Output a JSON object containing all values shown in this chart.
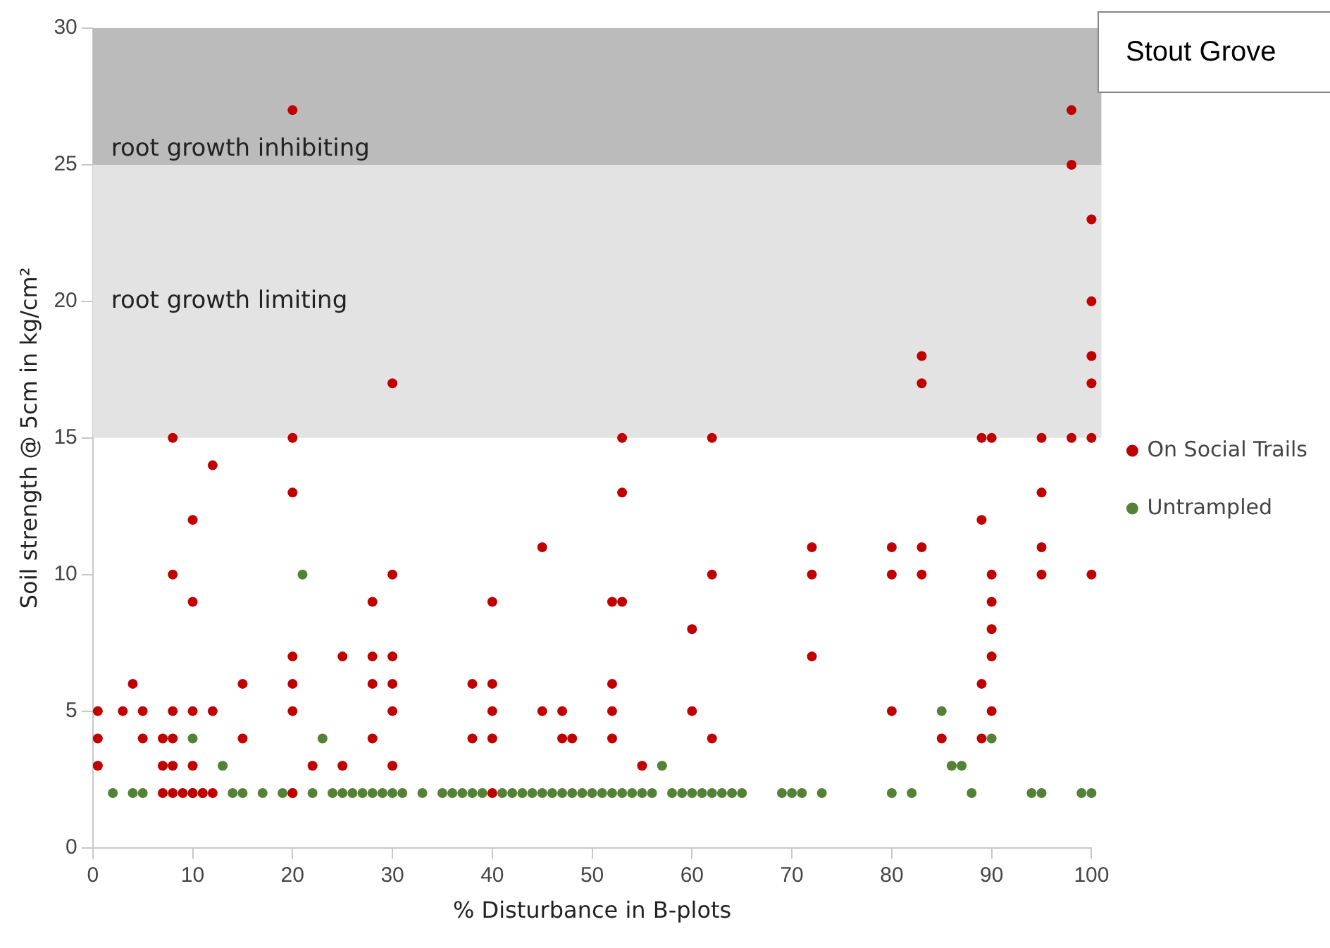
{
  "chart_data": {
    "type": "scatter",
    "title": "Stout Grove",
    "xlabel": "% Disturbance in B-plots",
    "ylabel": "Soil strength @ 5cm in kg/cm²",
    "xlim": [
      0,
      100
    ],
    "xticks": [
      0,
      10,
      20,
      30,
      40,
      50,
      60,
      70,
      80,
      90,
      100
    ],
    "ylim": [
      0,
      30
    ],
    "yticks": [
      0,
      5,
      10,
      15,
      20,
      25,
      30
    ],
    "grid": false,
    "legend": "right",
    "marker": "circle",
    "bands": [
      {
        "axis": "y",
        "from": 15,
        "to": 25,
        "label": "root growth limiting",
        "color": "#e3e3e3"
      },
      {
        "axis": "y",
        "from": 25,
        "to": 30,
        "label": "root growth inhibiting",
        "color": "#bbbbbb"
      }
    ],
    "series": [
      {
        "name": "On Social Trails",
        "color": "#c00000",
        "x": [
          0.5,
          0.5,
          0.5,
          3,
          4,
          5,
          5,
          7,
          7,
          7,
          8,
          8,
          8,
          8,
          8,
          8,
          9,
          10,
          10,
          10,
          10,
          10,
          11,
          12,
          12,
          12,
          15,
          15,
          20,
          20,
          20,
          20,
          20,
          20,
          20,
          22,
          25,
          25,
          28,
          28,
          28,
          28,
          30,
          30,
          30,
          30,
          30,
          30,
          38,
          38,
          40,
          40,
          40,
          40,
          40,
          45,
          45,
          47,
          47,
          48,
          52,
          52,
          52,
          52,
          53,
          53,
          53,
          55,
          60,
          60,
          62,
          62,
          62,
          72,
          72,
          72,
          80,
          80,
          80,
          83,
          83,
          83,
          83,
          85,
          89,
          89,
          89,
          89,
          90,
          90,
          90,
          90,
          90,
          90,
          95,
          95,
          95,
          95,
          98,
          98,
          98,
          100,
          100,
          100,
          100,
          100,
          100
        ],
        "values": [
          5,
          4,
          3,
          5,
          6,
          5,
          4,
          4,
          3,
          2,
          15,
          10,
          5,
          4,
          3,
          2,
          2,
          12,
          9,
          5,
          3,
          2,
          2,
          14,
          5,
          2,
          6,
          4,
          27,
          15,
          13,
          7,
          6,
          5,
          2,
          3,
          7,
          3,
          9,
          7,
          6,
          4,
          17,
          10,
          7,
          6,
          5,
          3,
          6,
          4,
          9,
          6,
          5,
          4,
          2,
          11,
          5,
          5,
          4,
          4,
          9,
          6,
          5,
          4,
          15,
          13,
          9,
          3,
          8,
          5,
          15,
          10,
          4,
          11,
          10,
          7,
          11,
          10,
          5,
          18,
          17,
          11,
          10,
          4,
          15,
          12,
          6,
          4,
          15,
          10,
          9,
          8,
          7,
          5,
          15,
          13,
          11,
          10,
          27,
          25,
          15,
          23,
          20,
          18,
          17,
          15,
          10
        ]
      },
      {
        "name": "Untrampled",
        "color": "#538135",
        "x": [
          2,
          4,
          5,
          10,
          10,
          11,
          13,
          14,
          15,
          17,
          19,
          20,
          21,
          22,
          23,
          24,
          25,
          26,
          27,
          28,
          29,
          30,
          31,
          33,
          35,
          36,
          37,
          38,
          39,
          41,
          42,
          43,
          44,
          45,
          46,
          47,
          48,
          49,
          50,
          51,
          52,
          53,
          54,
          55,
          56,
          57,
          58,
          59,
          60,
          61,
          62,
          63,
          64,
          65,
          69,
          70,
          71,
          73,
          80,
          82,
          85,
          86,
          87,
          88,
          90,
          94,
          95,
          99,
          100
        ],
        "values": [
          2,
          2,
          2,
          4,
          2,
          2,
          3,
          2,
          2,
          2,
          2,
          2,
          10,
          2,
          4,
          2,
          2,
          2,
          2,
          2,
          2,
          2,
          2,
          2,
          2,
          2,
          2,
          2,
          2,
          2,
          2,
          2,
          2,
          2,
          2,
          2,
          2,
          2,
          2,
          2,
          2,
          2,
          2,
          2,
          2,
          3,
          2,
          2,
          2,
          2,
          2,
          2,
          2,
          2,
          2,
          2,
          2,
          2,
          2,
          2,
          5,
          3,
          3,
          2,
          4,
          2,
          2,
          2,
          2
        ]
      }
    ]
  }
}
